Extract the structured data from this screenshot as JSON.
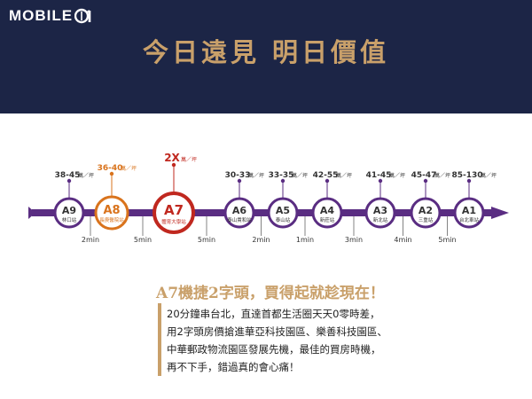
{
  "header": {
    "logo_text": "MOBILE",
    "headline": "今日遠見  明日價值"
  },
  "stations": [
    {
      "code": "A9",
      "name": "林口站",
      "price": "38-45",
      "unit": "萬／坪",
      "style": "normal",
      "interval": "2min"
    },
    {
      "code": "A8",
      "name": "長庚醫院站",
      "price": "36-40",
      "unit": "萬／坪",
      "style": "accent",
      "interval": "5min"
    },
    {
      "code": "A7",
      "name": "體育大學站",
      "price": "2X",
      "unit": "萬／坪",
      "style": "highlight",
      "interval": "5min"
    },
    {
      "code": "A6",
      "name": "泰山貴和站",
      "price": "30-33",
      "unit": "萬／坪",
      "style": "normal",
      "interval": "2min"
    },
    {
      "code": "A5",
      "name": "泰山站",
      "price": "33-35",
      "unit": "萬／坪",
      "style": "normal",
      "interval": "1min"
    },
    {
      "code": "A4",
      "name": "新莊站",
      "price": "42-55",
      "unit": "萬／坪",
      "style": "normal",
      "interval": "3min"
    },
    {
      "code": "A3",
      "name": "新北站",
      "price": "41-45",
      "unit": "萬／坪",
      "style": "normal",
      "interval": "4min"
    },
    {
      "code": "A2",
      "name": "三重站",
      "price": "45-47",
      "unit": "萬／坪",
      "style": "normal",
      "interval": "5min"
    },
    {
      "code": "A1",
      "name": "台北車站",
      "price": "85-130",
      "unit": "萬／坪",
      "style": "normal",
      "interval": ""
    }
  ],
  "promo": {
    "title": "A7機捷2字頭，買得起就趁現在！",
    "lines": [
      "20分鐘串台北，直達首都生活圈天天0零時差，",
      "用2字頭房價搶進華亞科技園區、樂善科技園區、",
      "中華郵政物流園區發展先機，最佳的買房時機，",
      "再不下手，錯過真的會心痛！"
    ]
  },
  "colors": {
    "navy": "#1c2546",
    "gold": "#c9a06a",
    "line_purple": "#5a2d82",
    "accent_orange": "#d9731c",
    "highlight_red": "#c0281f"
  }
}
